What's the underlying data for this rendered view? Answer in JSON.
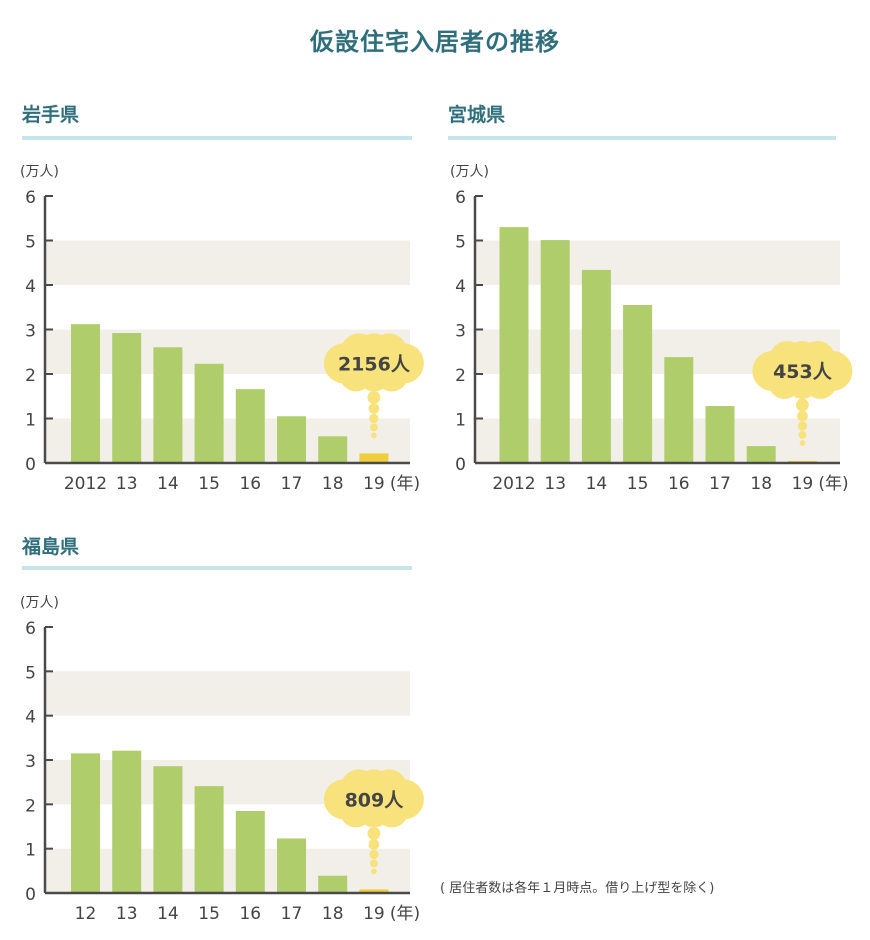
{
  "title": "仮設住宅入居者の推移",
  "note": "( 居住者数は各年１月時点。借り上げ型を除く)",
  "colors": {
    "title": "#2f6f7d",
    "bar": "#afcd6b",
    "bar_highlight": "#f0cd3a",
    "callout": "#f7e27c",
    "band": "#f2efe8",
    "rule": "#c5e5ea",
    "axis": "#4a4a4a"
  },
  "chart_data": [
    {
      "type": "bar",
      "title": "岩手県",
      "ylabel": "(万人)",
      "xlabel": "(年)",
      "ylim": [
        0,
        6
      ],
      "yticks": [
        "0",
        "1",
        "2",
        "3",
        "4",
        "5",
        "6"
      ],
      "categories": [
        "2012",
        "13",
        "14",
        "15",
        "16",
        "17",
        "18",
        "19"
      ],
      "values": [
        3.12,
        2.92,
        2.6,
        2.23,
        1.66,
        1.05,
        0.6,
        0.2156
      ],
      "highlight_index": 7,
      "callout": "2156人"
    },
    {
      "type": "bar",
      "title": "宮城県",
      "ylabel": "(万人)",
      "xlabel": "(年)",
      "ylim": [
        0,
        6
      ],
      "yticks": [
        "0",
        "1",
        "2",
        "3",
        "4",
        "5",
        "6"
      ],
      "categories": [
        "2012",
        "13",
        "14",
        "15",
        "16",
        "17",
        "18",
        "19"
      ],
      "values": [
        5.3,
        5.01,
        4.34,
        3.55,
        2.38,
        1.28,
        0.38,
        0.0453
      ],
      "highlight_index": 7,
      "callout": "453人"
    },
    {
      "type": "bar",
      "title": "福島県",
      "ylabel": "(万人)",
      "xlabel": "(年)",
      "ylim": [
        0,
        6
      ],
      "yticks": [
        "0",
        "1",
        "2",
        "3",
        "4",
        "5",
        "6"
      ],
      "categories": [
        "12",
        "13",
        "14",
        "15",
        "16",
        "17",
        "18",
        "19"
      ],
      "values": [
        3.15,
        3.21,
        2.86,
        2.41,
        1.85,
        1.23,
        0.39,
        0.0809
      ],
      "highlight_index": 7,
      "callout": "809人"
    }
  ]
}
